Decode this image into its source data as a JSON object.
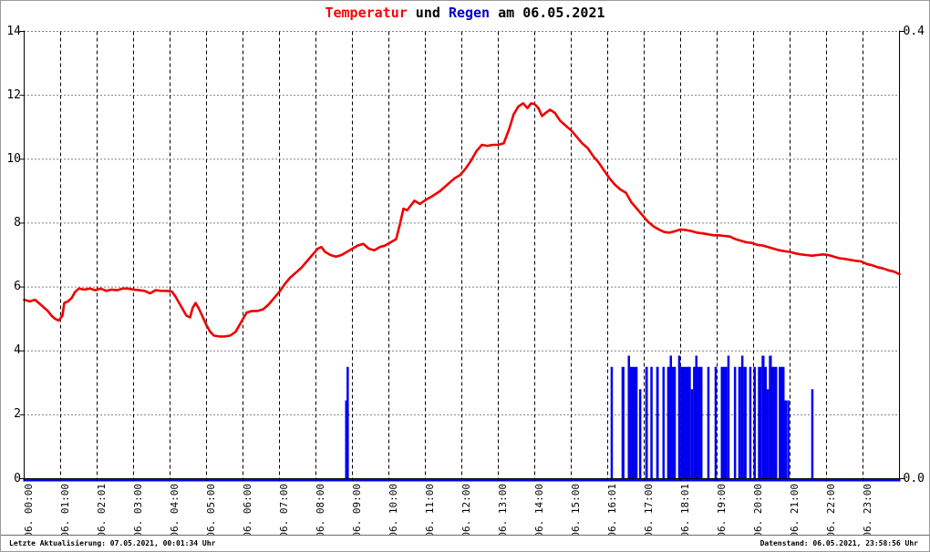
{
  "title": {
    "temperatur": "Temperatur",
    "und": " und ",
    "regen": "Regen",
    "date_suffix": " am 06.05.2021"
  },
  "statusbar": {
    "left": "Letzte Aktualisierung: 07.05.2021, 00:01:34 Uhr",
    "right": "Datenstand: 06.05.2021, 23:58:56 Uhr"
  },
  "colors": {
    "temperature_line": "#ee0000",
    "rain_bar": "#0000f0",
    "title_red": "#ff0000",
    "title_blue": "#0000cc",
    "grid": "#000000",
    "axis": "#000000",
    "frame_border": "#9a9a9a"
  },
  "chart_data": {
    "type": "line+bar",
    "title": "Temperatur und Regen am 06.05.2021",
    "grid": {
      "vertical": "dashed, hourly",
      "horizontal": "dotted, every 2 units"
    },
    "legend_position": "none",
    "x": {
      "range_hours": [
        0,
        24
      ],
      "tick_labels": [
        "06. 00:00",
        "06. 01:00",
        "06. 02:01",
        "06. 03:00",
        "06. 04:00",
        "06. 05:00",
        "06. 06:00",
        "06. 07:00",
        "06. 08:00",
        "06. 09:00",
        "06. 10:00",
        "06. 11:00",
        "06. 12:00",
        "06. 13:00",
        "06. 14:00",
        "06. 15:00",
        "06. 16:01",
        "06. 17:00",
        "06. 18:01",
        "06. 19:00",
        "06. 20:00",
        "06. 21:00",
        "06. 22:00",
        "06. 23:00"
      ]
    },
    "y_left": {
      "ticks": [
        0,
        2,
        4,
        6,
        8,
        10,
        12,
        14
      ],
      "range": [
        0,
        14
      ],
      "series": "Temperatur"
    },
    "y_right": {
      "tick_labels": [
        "0.0",
        "0.4"
      ],
      "range": [
        0,
        0.4
      ],
      "series": "Regen"
    },
    "series": [
      {
        "name": "Temperatur",
        "type": "line",
        "axis": "left",
        "color": "#ee0000",
        "points": [
          [
            0,
            5.6
          ],
          [
            0.15,
            5.55
          ],
          [
            0.3,
            5.6
          ],
          [
            0.45,
            5.45
          ],
          [
            0.55,
            5.35
          ],
          [
            0.65,
            5.25
          ],
          [
            0.75,
            5.1
          ],
          [
            0.85,
            5.0
          ],
          [
            0.95,
            4.95
          ],
          [
            1.05,
            5.1
          ],
          [
            1.1,
            5.5
          ],
          [
            1.2,
            5.55
          ],
          [
            1.3,
            5.65
          ],
          [
            1.4,
            5.85
          ],
          [
            1.5,
            5.95
          ],
          [
            1.65,
            5.92
          ],
          [
            1.8,
            5.95
          ],
          [
            1.95,
            5.9
          ],
          [
            2.1,
            5.95
          ],
          [
            2.25,
            5.88
          ],
          [
            2.4,
            5.92
          ],
          [
            2.55,
            5.9
          ],
          [
            2.7,
            5.95
          ],
          [
            2.85,
            5.95
          ],
          [
            3.0,
            5.92
          ],
          [
            3.15,
            5.9
          ],
          [
            3.3,
            5.88
          ],
          [
            3.45,
            5.8
          ],
          [
            3.6,
            5.9
          ],
          [
            3.75,
            5.88
          ],
          [
            3.9,
            5.88
          ],
          [
            4.05,
            5.86
          ],
          [
            4.15,
            5.7
          ],
          [
            4.25,
            5.5
          ],
          [
            4.35,
            5.3
          ],
          [
            4.45,
            5.1
          ],
          [
            4.55,
            5.05
          ],
          [
            4.62,
            5.35
          ],
          [
            4.7,
            5.5
          ],
          [
            4.78,
            5.35
          ],
          [
            4.88,
            5.1
          ],
          [
            5.0,
            4.8
          ],
          [
            5.1,
            4.6
          ],
          [
            5.2,
            4.48
          ],
          [
            5.35,
            4.45
          ],
          [
            5.5,
            4.45
          ],
          [
            5.65,
            4.48
          ],
          [
            5.8,
            4.6
          ],
          [
            5.95,
            4.9
          ],
          [
            6.1,
            5.2
          ],
          [
            6.25,
            5.25
          ],
          [
            6.4,
            5.25
          ],
          [
            6.55,
            5.3
          ],
          [
            6.7,
            5.45
          ],
          [
            6.85,
            5.65
          ],
          [
            7.0,
            5.85
          ],
          [
            7.15,
            6.1
          ],
          [
            7.3,
            6.3
          ],
          [
            7.45,
            6.45
          ],
          [
            7.6,
            6.6
          ],
          [
            7.75,
            6.8
          ],
          [
            7.9,
            7.0
          ],
          [
            8.05,
            7.2
          ],
          [
            8.15,
            7.25
          ],
          [
            8.25,
            7.1
          ],
          [
            8.4,
            7.0
          ],
          [
            8.55,
            6.95
          ],
          [
            8.7,
            7.0
          ],
          [
            8.85,
            7.1
          ],
          [
            9.0,
            7.2
          ],
          [
            9.15,
            7.3
          ],
          [
            9.3,
            7.35
          ],
          [
            9.45,
            7.2
          ],
          [
            9.6,
            7.15
          ],
          [
            9.75,
            7.25
          ],
          [
            9.9,
            7.3
          ],
          [
            10.05,
            7.4
          ],
          [
            10.2,
            7.5
          ],
          [
            10.3,
            7.95
          ],
          [
            10.4,
            8.45
          ],
          [
            10.5,
            8.4
          ],
          [
            10.6,
            8.55
          ],
          [
            10.7,
            8.7
          ],
          [
            10.85,
            8.6
          ],
          [
            11.0,
            8.72
          ],
          [
            11.2,
            8.85
          ],
          [
            11.4,
            9.0
          ],
          [
            11.6,
            9.2
          ],
          [
            11.8,
            9.4
          ],
          [
            11.95,
            9.5
          ],
          [
            12.1,
            9.7
          ],
          [
            12.25,
            9.95
          ],
          [
            12.4,
            10.25
          ],
          [
            12.55,
            10.45
          ],
          [
            12.7,
            10.42
          ],
          [
            12.85,
            10.45
          ],
          [
            13.0,
            10.45
          ],
          [
            13.15,
            10.5
          ],
          [
            13.3,
            10.95
          ],
          [
            13.42,
            11.4
          ],
          [
            13.55,
            11.65
          ],
          [
            13.68,
            11.75
          ],
          [
            13.8,
            11.6
          ],
          [
            13.9,
            11.75
          ],
          [
            14.0,
            11.72
          ],
          [
            14.1,
            11.6
          ],
          [
            14.2,
            11.35
          ],
          [
            14.3,
            11.45
          ],
          [
            14.42,
            11.55
          ],
          [
            14.55,
            11.45
          ],
          [
            14.7,
            11.2
          ],
          [
            14.85,
            11.05
          ],
          [
            15.0,
            10.9
          ],
          [
            15.15,
            10.7
          ],
          [
            15.3,
            10.5
          ],
          [
            15.45,
            10.35
          ],
          [
            15.6,
            10.1
          ],
          [
            15.75,
            9.9
          ],
          [
            15.9,
            9.65
          ],
          [
            16.05,
            9.4
          ],
          [
            16.2,
            9.2
          ],
          [
            16.35,
            9.05
          ],
          [
            16.5,
            8.95
          ],
          [
            16.65,
            8.65
          ],
          [
            16.8,
            8.45
          ],
          [
            16.95,
            8.25
          ],
          [
            17.1,
            8.05
          ],
          [
            17.25,
            7.9
          ],
          [
            17.4,
            7.8
          ],
          [
            17.55,
            7.72
          ],
          [
            17.7,
            7.7
          ],
          [
            17.85,
            7.75
          ],
          [
            18.0,
            7.8
          ],
          [
            18.15,
            7.78
          ],
          [
            18.3,
            7.75
          ],
          [
            18.45,
            7.7
          ],
          [
            18.6,
            7.68
          ],
          [
            18.75,
            7.65
          ],
          [
            18.9,
            7.62
          ],
          [
            19.05,
            7.62
          ],
          [
            19.2,
            7.6
          ],
          [
            19.35,
            7.58
          ],
          [
            19.5,
            7.5
          ],
          [
            19.65,
            7.45
          ],
          [
            19.8,
            7.4
          ],
          [
            19.95,
            7.38
          ],
          [
            20.1,
            7.32
          ],
          [
            20.25,
            7.3
          ],
          [
            20.4,
            7.25
          ],
          [
            20.55,
            7.2
          ],
          [
            20.7,
            7.15
          ],
          [
            20.85,
            7.12
          ],
          [
            21.0,
            7.1
          ],
          [
            21.15,
            7.05
          ],
          [
            21.3,
            7.02
          ],
          [
            21.45,
            7.0
          ],
          [
            21.6,
            6.98
          ],
          [
            21.75,
            7.0
          ],
          [
            21.9,
            7.02
          ],
          [
            22.05,
            7.0
          ],
          [
            22.2,
            6.95
          ],
          [
            22.35,
            6.9
          ],
          [
            22.5,
            6.88
          ],
          [
            22.65,
            6.85
          ],
          [
            22.8,
            6.82
          ],
          [
            22.95,
            6.8
          ],
          [
            23.1,
            6.72
          ],
          [
            23.25,
            6.68
          ],
          [
            23.4,
            6.62
          ],
          [
            23.55,
            6.58
          ],
          [
            23.7,
            6.52
          ],
          [
            23.85,
            6.48
          ],
          [
            24.0,
            6.4
          ]
        ]
      },
      {
        "name": "Regen",
        "type": "bar",
        "axis": "right",
        "color": "#0000f0",
        "segments": [
          [
            8.8,
            8.84,
            0.07
          ],
          [
            8.84,
            8.9,
            0.1
          ],
          [
            16.08,
            16.14,
            0.1
          ],
          [
            16.38,
            16.46,
            0.1
          ],
          [
            16.55,
            16.6,
            0.11
          ],
          [
            16.6,
            16.82,
            0.1
          ],
          [
            16.86,
            16.92,
            0.08
          ],
          [
            17.03,
            17.1,
            0.1
          ],
          [
            17.17,
            17.23,
            0.1
          ],
          [
            17.33,
            17.4,
            0.1
          ],
          [
            17.5,
            17.56,
            0.1
          ],
          [
            17.63,
            17.7,
            0.1
          ],
          [
            17.7,
            17.76,
            0.11
          ],
          [
            17.76,
            17.87,
            0.1
          ],
          [
            17.93,
            17.99,
            0.11
          ],
          [
            17.99,
            18.28,
            0.1
          ],
          [
            18.28,
            18.34,
            0.08
          ],
          [
            18.34,
            18.4,
            0.1
          ],
          [
            18.4,
            18.46,
            0.11
          ],
          [
            18.46,
            18.6,
            0.1
          ],
          [
            18.73,
            18.79,
            0.1
          ],
          [
            18.93,
            18.99,
            0.1
          ],
          [
            19.1,
            19.28,
            0.1
          ],
          [
            19.28,
            19.34,
            0.11
          ],
          [
            19.46,
            19.52,
            0.1
          ],
          [
            19.58,
            19.66,
            0.1
          ],
          [
            19.66,
            19.72,
            0.11
          ],
          [
            19.72,
            19.81,
            0.1
          ],
          [
            19.88,
            19.94,
            0.1
          ],
          [
            20.0,
            20.06,
            0.1
          ],
          [
            20.12,
            20.22,
            0.1
          ],
          [
            20.22,
            20.3,
            0.11
          ],
          [
            20.3,
            20.36,
            0.1
          ],
          [
            20.36,
            20.42,
            0.08
          ],
          [
            20.42,
            20.5,
            0.11
          ],
          [
            20.5,
            20.65,
            0.1
          ],
          [
            20.69,
            20.85,
            0.1
          ],
          [
            20.85,
            20.9,
            0.07
          ],
          [
            20.92,
            20.98,
            0.07
          ],
          [
            21.58,
            21.64,
            0.08
          ]
        ]
      }
    ]
  }
}
